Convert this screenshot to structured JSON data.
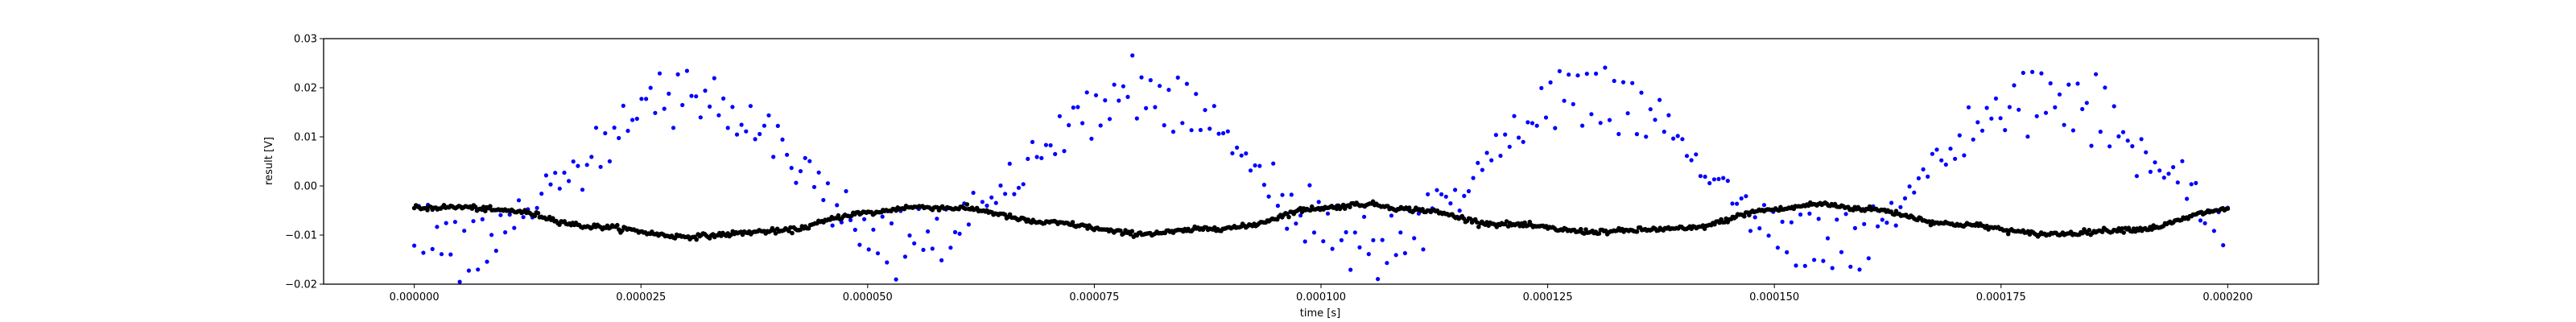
{
  "chart_data": {
    "type": "scatter",
    "xlabel": "time [s]",
    "ylabel": "result [V]",
    "xlim": [
      -1e-05,
      0.00021
    ],
    "ylim": [
      -0.02,
      0.03
    ],
    "x_ticks": [
      0,
      2.5e-05,
      5e-05,
      7.5e-05,
      0.0001,
      0.000125,
      0.00015,
      0.000175,
      0.0002
    ],
    "x_tick_labels": [
      "0.000000",
      "0.000025",
      "0.000050",
      "0.000075",
      "0.000100",
      "0.000125",
      "0.000150",
      "0.000175",
      "0.000200"
    ],
    "y_ticks": [
      -0.02,
      -0.01,
      0.0,
      0.01,
      0.02,
      0.03
    ],
    "y_tick_labels": [
      "−0.02",
      "−0.01",
      "0.00",
      "0.01",
      "0.02",
      "0.03"
    ],
    "grid": false,
    "x_range": [
      0,
      0.0002
    ],
    "series": [
      {
        "color": "#0000ff",
        "marker": "dot",
        "points": 400,
        "shape": "two sinusoids with a 0.00005 s period, 0.0035 V offset; one of 0.0185 V amplitude and one of 0.0115 V amplitude, highest at about 0.00003, 0.00008, 0.00013, 0.00018 s",
        "noise": 0.0022
      },
      {
        "color": "#000000",
        "marker": "dot",
        "points": 1100,
        "shape": "slow waveform near −0.005 V with dips to about −0.010 V at 0.00003, 0.00008, 0.00013, 0.00018 s",
        "envelope": {
          "x": [
            0,
            5e-06,
            1e-05,
            2e-05,
            3e-05,
            4e-05,
            5e-05,
            5.5e-05,
            6e-05,
            7e-05,
            8e-05,
            9e-05,
            0.0001,
            0.000105,
            0.00011,
            0.00012,
            0.00013,
            0.00014,
            0.00015,
            0.000155,
            0.00016,
            0.00017,
            0.00018,
            0.00019,
            0.0002
          ],
          "y": [
            -0.0045,
            -0.0043,
            -0.005,
            -0.0083,
            -0.0103,
            -0.0092,
            -0.0055,
            -0.0043,
            -0.0045,
            -0.0075,
            -0.0097,
            -0.0085,
            -0.0045,
            -0.0037,
            -0.0048,
            -0.0078,
            -0.0093,
            -0.0087,
            -0.0048,
            -0.0037,
            -0.0047,
            -0.0078,
            -0.0098,
            -0.0088,
            -0.0048
          ]
        }
      }
    ]
  }
}
